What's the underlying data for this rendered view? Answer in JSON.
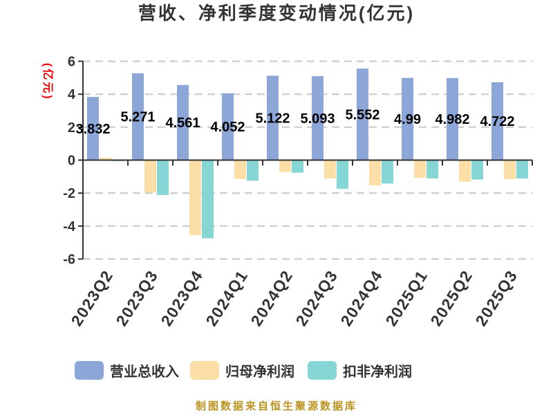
{
  "title": "营收、净利季度变动情况(亿元)",
  "y_axis_name": "(亿元)",
  "footer": "制图数据来自恒生聚源数据库",
  "colors": {
    "revenue": "#8DA6D8",
    "net_profit": "#FBDFA6",
    "deducted_net_profit": "#85D6D4",
    "axis": "#333333",
    "grid": "#cfcfcf",
    "value_label": "#000000",
    "axis_name": "#ee0000",
    "footer_text": "#ba9220"
  },
  "chart_data": {
    "type": "bar",
    "title": "营收、净利季度变动情况(亿元)",
    "ylabel": "(亿元)",
    "categories": [
      "2023Q2",
      "2023Q3",
      "2023Q4",
      "2024Q1",
      "2024Q2",
      "2024Q3",
      "2024Q4",
      "2025Q1",
      "2025Q2",
      "2025Q3"
    ],
    "series": [
      {
        "name": "营业总收入",
        "color_key": "revenue",
        "values": [
          3.832,
          5.271,
          4.561,
          4.052,
          5.122,
          5.093,
          5.552,
          4.99,
          4.982,
          4.722
        ],
        "labels": [
          "3.832",
          "5.271",
          "4.561",
          "4.052",
          "5.122",
          "5.093",
          "5.552",
          "4.99",
          "4.982",
          "4.722"
        ]
      },
      {
        "name": "归母净利润",
        "color_key": "net_profit",
        "values": [
          0.15,
          -1.96,
          -4.55,
          -1.14,
          -0.72,
          -1.11,
          -1.53,
          -1.07,
          -1.32,
          -1.15
        ]
      },
      {
        "name": "扣非净利润",
        "color_key": "deducted_net_profit",
        "values": [
          -0.06,
          -2.12,
          -4.74,
          -1.25,
          -0.76,
          -1.74,
          -1.42,
          -1.11,
          -1.18,
          -1.11
        ]
      }
    ],
    "ylim": [
      -6,
      6
    ],
    "y_ticks": [
      6,
      4,
      2,
      0,
      -2,
      -4,
      -6
    ],
    "grid": "dashed",
    "legend_position": "bottom"
  }
}
